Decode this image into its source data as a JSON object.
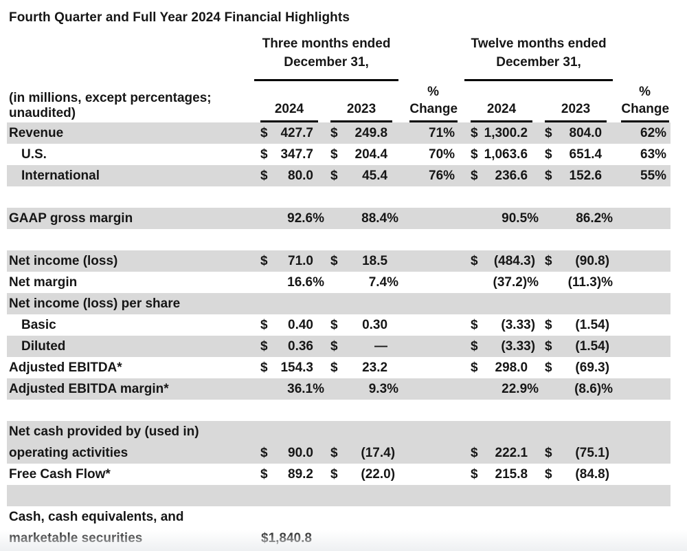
{
  "title": "Fourth Quarter and Full Year 2024 Financial Highlights",
  "colors": {
    "row_shade": "#d9d9d9",
    "text": "#161616",
    "underline": "#000000",
    "page_fade": "#eef0f2"
  },
  "table": {
    "header": {
      "three_months": {
        "line1": "Three months ended",
        "line2": "December 31,"
      },
      "twelve_months": {
        "line1": "Twelve months ended",
        "line2": "December 31,"
      },
      "note": "(in millions, except percentages; unaudited)",
      "year_2024": "2024",
      "year_2023": "2023",
      "pct_symbol": "%",
      "pct_change": "Change"
    },
    "rows": [
      {
        "label": "Revenue",
        "shaded": true,
        "m1": [
          "$",
          "427.7"
        ],
        "m2": [
          "$",
          "249.8"
        ],
        "p1": "71%",
        "m3": [
          "$",
          "1,300.2"
        ],
        "m4": [
          "$",
          "804.0"
        ],
        "p2": "62%"
      },
      {
        "label": "U.S.",
        "indent": true,
        "m1": [
          "$",
          "347.7"
        ],
        "m2": [
          "$",
          "204.4"
        ],
        "p1": "70%",
        "m3": [
          "$",
          "1,063.6"
        ],
        "m4": [
          "$",
          "651.4"
        ],
        "p2": "63%"
      },
      {
        "label": "International",
        "indent": true,
        "shaded": true,
        "m1": [
          "$",
          "80.0"
        ],
        "m2": [
          "$",
          "45.4"
        ],
        "p1": "76%",
        "m3": [
          "$",
          "236.6"
        ],
        "m4": [
          "$",
          "152.6"
        ],
        "p2": "55%"
      },
      {
        "label": ""
      },
      {
        "label": "GAAP gross margin",
        "shaded": true,
        "m1": [
          "",
          "92.6%"
        ],
        "m2": [
          "",
          "88.4%"
        ],
        "p1": "",
        "m3": [
          "",
          "90.5%"
        ],
        "m4": [
          "",
          "86.2%"
        ],
        "p2": ""
      },
      {
        "label": ""
      },
      {
        "label": "Net income (loss)",
        "shaded": true,
        "m1": [
          "$",
          "71.0"
        ],
        "m2": [
          "$",
          "18.5"
        ],
        "p1": "",
        "m3": [
          "$",
          "(484.3)"
        ],
        "m4": [
          "$",
          "(90.8)"
        ],
        "p2": ""
      },
      {
        "label": "Net margin",
        "m1": [
          "",
          "16.6%"
        ],
        "m2": [
          "",
          "7.4%"
        ],
        "p1": "",
        "m3": [
          "",
          "(37.2)%"
        ],
        "m4": [
          "",
          "(11.3)%"
        ],
        "p2": ""
      },
      {
        "label": "Net income (loss) per share",
        "shaded": true
      },
      {
        "label": "Basic",
        "indent": true,
        "m1": [
          "$",
          "0.40"
        ],
        "m2": [
          "$",
          "0.30"
        ],
        "p1": "",
        "m3": [
          "$",
          "(3.33)"
        ],
        "m4": [
          "$",
          "(1.54)"
        ],
        "p2": ""
      },
      {
        "label": "Diluted",
        "indent": true,
        "shaded": true,
        "m1": [
          "$",
          "0.36"
        ],
        "m2": [
          "$",
          "—"
        ],
        "p1": "",
        "m3": [
          "$",
          "(3.33)"
        ],
        "m4": [
          "$",
          "(1.54)"
        ],
        "p2": ""
      },
      {
        "label": "Adjusted EBITDA*",
        "m1": [
          "$",
          "154.3"
        ],
        "m2": [
          "$",
          "23.2"
        ],
        "p1": "",
        "m3": [
          "$",
          "298.0"
        ],
        "m4": [
          "$",
          "(69.3)"
        ],
        "p2": ""
      },
      {
        "label": "Adjusted EBITDA margin*",
        "shaded": true,
        "m1": [
          "",
          "36.1%"
        ],
        "m2": [
          "",
          "9.3%"
        ],
        "p1": "",
        "m3": [
          "",
          "22.9%"
        ],
        "m4": [
          "",
          "(8.6)%"
        ],
        "p2": ""
      },
      {
        "label": ""
      },
      {
        "label": "Net cash provided by (used in)",
        "label2": "operating activities",
        "shaded": true,
        "m1": [
          "$",
          "90.0"
        ],
        "m2": [
          "$",
          "(17.4)"
        ],
        "p1": "",
        "m3": [
          "$",
          "222.1"
        ],
        "m4": [
          "$",
          "(75.1)"
        ],
        "p2": ""
      },
      {
        "label": "Free Cash Flow*",
        "m1": [
          "$",
          "89.2"
        ],
        "m2": [
          "$",
          "(22.0)"
        ],
        "p1": "",
        "m3": [
          "$",
          "215.8"
        ],
        "m4": [
          "$",
          "(84.8)"
        ],
        "p2": ""
      },
      {
        "label": "",
        "shaded": true
      },
      {
        "label": "Cash, cash equivalents, and",
        "label2": "marketable securities",
        "m1": "$1,840.8"
      }
    ]
  }
}
